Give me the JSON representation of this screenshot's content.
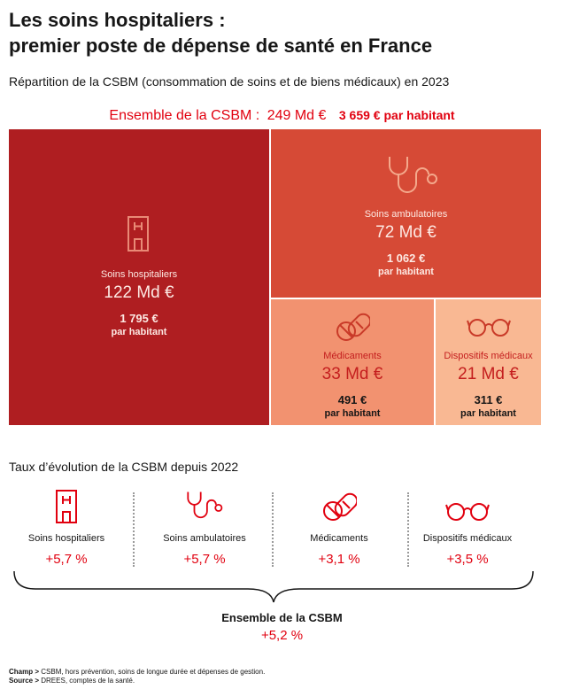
{
  "title_line1": "Les soins hospitaliers :",
  "title_line2": "premier poste de dépense de santé en France",
  "subtitle": "Répartition de la CSBM (consommation de soins et de biens médicaux) en 2023",
  "total": {
    "label": "Ensemble de la CSBM :",
    "value": "249 Md €",
    "per_capita": "3 659 € par habitant"
  },
  "chart_data": [
    {
      "type": "treemap",
      "unit": "Md €",
      "total": 249,
      "total_per_capita": 3659,
      "items": [
        {
          "name": "Soins hospitaliers",
          "value": 122,
          "value_label": "122 Md €",
          "per_capita": "1 795 €",
          "per_capita_suffix": "par habitant",
          "icon": "hospital-icon"
        },
        {
          "name": "Soins ambulatoires",
          "value": 72,
          "value_label": "72 Md €",
          "per_capita": "1 062 €",
          "per_capita_suffix": "par habitant",
          "icon": "stethoscope-icon"
        },
        {
          "name": "Médicaments",
          "value": 33,
          "value_label": "33 Md €",
          "per_capita": "491 €",
          "per_capita_suffix": "par habitant",
          "icon": "pills-icon"
        },
        {
          "name": "Dispositifs médicaux",
          "value": 21,
          "value_label": "21 Md €",
          "per_capita": "311 €",
          "per_capita_suffix": "par habitant",
          "icon": "glasses-icon"
        }
      ],
      "colors": {
        "hospitaliers": "#af1e21",
        "ambulatoires": "#d64a36",
        "medicaments": "#f29270",
        "dispositifs": "#f9b893"
      }
    },
    {
      "type": "table",
      "title": "Taux d’évolution de la CSBM depuis 2022",
      "unit": "%",
      "rows": [
        {
          "name": "Soins hospitaliers",
          "value": 5.7,
          "label": "+5,7 %",
          "icon": "hospital-icon"
        },
        {
          "name": "Soins ambulatoires",
          "value": 5.7,
          "label": "+5,7 %",
          "icon": "stethoscope-icon"
        },
        {
          "name": "Médicaments",
          "value": 3.1,
          "label": "+3,1 %",
          "icon": "pills-icon"
        },
        {
          "name": "Dispositifs médicaux",
          "value": 3.5,
          "label": "+3,5 %",
          "icon": "glasses-icon"
        }
      ],
      "total": {
        "name": "Ensemble de la CSBM",
        "value": 5.2,
        "label": "+5,2 %"
      }
    }
  ],
  "notes": {
    "champ_label": "Champ >",
    "champ_text": "CSBM, hors prévention, soins de longue durée et dépenses de gestion.",
    "source_label": "Source >",
    "source_text": "DREES, comptes de la santé."
  },
  "colors": {
    "accent": "#e1000f",
    "text": "#161616"
  }
}
